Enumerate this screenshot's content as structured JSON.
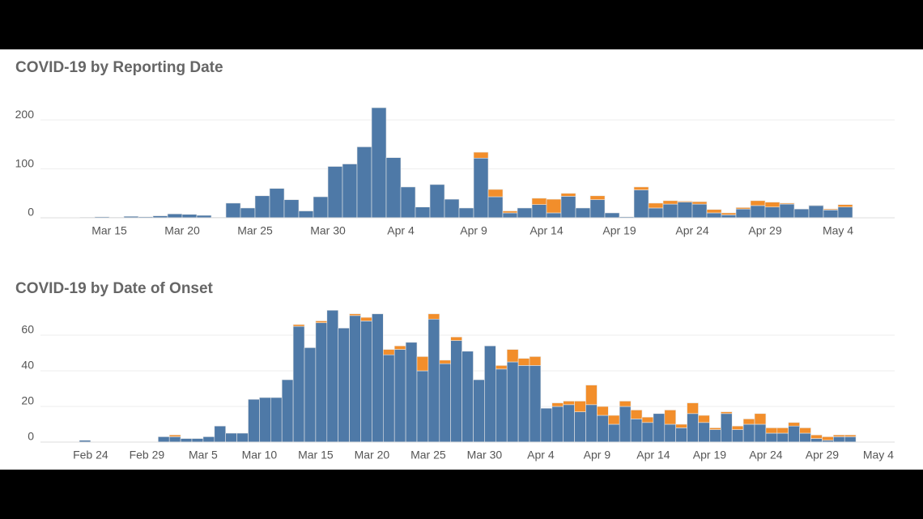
{
  "chart_data": [
    {
      "type": "bar",
      "stacked": true,
      "title": "COVID-19 by Reporting Date",
      "grid": true,
      "categories": [
        null,
        null,
        "Mar 15",
        null,
        null,
        null,
        null,
        "Mar 20",
        null,
        null,
        null,
        null,
        "Mar 25",
        null,
        null,
        null,
        null,
        "Mar 30",
        null,
        null,
        null,
        null,
        "Apr 4",
        null,
        null,
        null,
        null,
        "Apr 9",
        null,
        null,
        null,
        null,
        "Apr 14",
        null,
        null,
        null,
        null,
        "Apr 19",
        null,
        null,
        null,
        null,
        "Apr 24",
        null,
        null,
        null,
        null,
        "Apr 29",
        null,
        null,
        null,
        null,
        "May 4"
      ],
      "series": [
        {
          "color": "#4e79a7",
          "values": [
            1,
            2,
            1,
            3,
            2,
            4,
            8,
            7,
            5,
            1,
            30,
            20,
            45,
            60,
            37,
            14,
            43,
            105,
            110,
            145,
            225,
            123,
            63,
            22,
            68,
            38,
            20,
            122,
            43,
            10,
            20,
            27,
            10,
            44,
            20,
            37,
            10,
            2,
            57,
            20,
            28,
            32,
            28,
            10,
            6,
            18,
            25,
            22,
            28,
            18,
            25,
            16,
            22
          ]
        },
        {
          "color": "#f28e2b",
          "values": [
            0,
            0,
            0,
            0,
            0,
            0,
            0,
            0,
            0,
            0,
            0,
            0,
            0,
            0,
            0,
            0,
            0,
            0,
            0,
            0,
            0,
            0,
            0,
            0,
            0,
            0,
            0,
            12,
            15,
            4,
            0,
            13,
            28,
            6,
            0,
            8,
            0,
            0,
            6,
            10,
            7,
            2,
            5,
            7,
            4,
            3,
            10,
            10,
            2,
            0,
            1,
            2,
            5
          ]
        }
      ],
      "ylim": [
        0,
        230
      ],
      "yticks": [
        0,
        100,
        200
      ]
    },
    {
      "type": "bar",
      "stacked": true,
      "title": "COVID-19 by Date of Onset",
      "grid": true,
      "categories": [
        null,
        "Feb 24",
        null,
        null,
        null,
        null,
        "Feb 29",
        null,
        null,
        null,
        null,
        "Mar 5",
        null,
        null,
        null,
        null,
        "Mar 10",
        null,
        null,
        null,
        null,
        "Mar 15",
        null,
        null,
        null,
        null,
        "Mar 20",
        null,
        null,
        null,
        null,
        "Mar 25",
        null,
        null,
        null,
        null,
        "Mar 30",
        null,
        null,
        null,
        null,
        "Apr 4",
        null,
        null,
        null,
        null,
        "Apr 9",
        null,
        null,
        null,
        null,
        "Apr 14",
        null,
        null,
        null,
        null,
        "Apr 19",
        null,
        null,
        null,
        null,
        "Apr 24",
        null,
        null,
        null,
        null,
        "Apr 29",
        null,
        null,
        null,
        null,
        "May 4"
      ],
      "series": [
        {
          "color": "#4e79a7",
          "values": [
            1,
            0,
            0,
            0,
            0,
            0,
            0,
            3,
            3,
            2,
            2,
            3,
            9,
            5,
            5,
            24,
            25,
            25,
            35,
            65,
            53,
            67,
            74,
            64,
            71,
            68,
            72,
            49,
            52,
            56,
            40,
            69,
            44,
            57,
            51,
            35,
            54,
            41,
            45,
            43,
            43,
            19,
            20,
            21,
            17,
            21,
            15,
            10,
            20,
            13,
            11,
            16,
            10,
            8,
            16,
            11,
            7,
            16,
            7,
            10,
            10,
            5,
            5,
            9,
            5,
            2,
            1,
            3,
            3,
            null,
            null,
            null
          ]
        },
        {
          "color": "#f28e2b",
          "values": [
            0,
            0,
            0,
            0,
            0,
            0,
            0,
            0,
            1,
            0,
            0,
            0,
            0,
            0,
            0,
            0,
            0,
            0,
            0,
            1,
            0,
            1,
            0,
            0,
            1,
            2,
            0,
            3,
            2,
            0,
            8,
            3,
            2,
            2,
            0,
            0,
            0,
            2,
            7,
            4,
            5,
            0,
            2,
            2,
            6,
            11,
            5,
            5,
            3,
            5,
            3,
            0,
            8,
            2,
            6,
            4,
            1,
            1,
            2,
            3,
            6,
            3,
            3,
            2,
            3,
            2,
            2,
            1,
            1,
            null,
            null,
            null
          ]
        }
      ],
      "ylim": [
        0,
        75
      ],
      "yticks": [
        0,
        20,
        40,
        60
      ]
    }
  ]
}
